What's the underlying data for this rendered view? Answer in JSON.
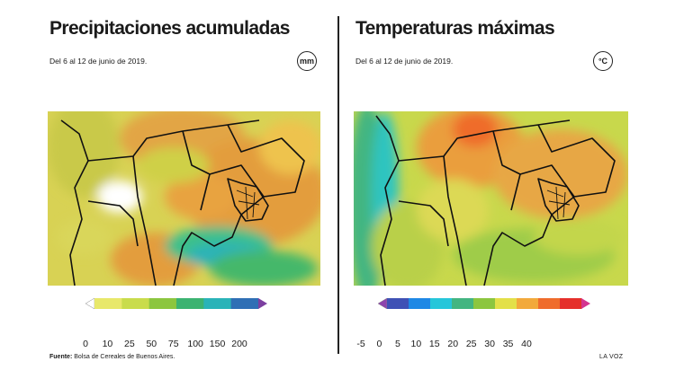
{
  "precip": {
    "title": "Precipitaciones acumuladas",
    "subtitle": "Del 6 al 12 de junio de 2019.",
    "unit": "mm",
    "legend_ticks": [
      "0",
      "10",
      "25",
      "50",
      "75",
      "100",
      "150",
      "200"
    ],
    "legend_colors": [
      "#ffffff",
      "#e8e86a",
      "#c9dc4c",
      "#8cc63f",
      "#3cb371",
      "#2ab3b8",
      "#2f6fb5",
      "#7c3fa0"
    ]
  },
  "temp": {
    "title": "Temperaturas máximas",
    "subtitle": "Del 6 al 12 de junio de 2019.",
    "unit": "°C",
    "legend_ticks": [
      "-5",
      "0",
      "5",
      "10",
      "15",
      "20",
      "25",
      "30",
      "35",
      "40"
    ],
    "legend_colors": [
      "#8e44ad",
      "#3f51b5",
      "#1e88e5",
      "#26c6da",
      "#43b581",
      "#8cc63f",
      "#e3e048",
      "#f2a93b",
      "#ef6c2c",
      "#e5302b",
      "#d4348f"
    ]
  },
  "footer": {
    "source_label": "Fuente:",
    "source_text": "Bolsa de Cereales de Buenos Aires.",
    "brand": "LA VOZ"
  },
  "icons": {
    "left_map": "precipitation-map",
    "right_map": "temperature-map"
  }
}
